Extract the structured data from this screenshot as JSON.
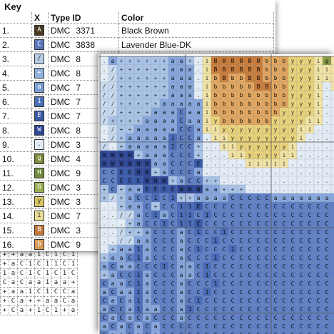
{
  "key": {
    "title": "Key",
    "headers": {
      "index": "",
      "symbol": "X",
      "type_id": "Type ID",
      "color": "Color"
    },
    "rows": [
      {
        "index": "1.",
        "symbol": "A",
        "type": "DMC",
        "id": "3371",
        "color_name": "Black Brown",
        "swatch": "#4b3a22"
      },
      {
        "index": "2.",
        "symbol": "C",
        "type": "DMC",
        "id": "3838",
        "color_name": "Lavender Blue-DK",
        "swatch": "#5a76b8"
      },
      {
        "index": "3.",
        "symbol": "/",
        "type": "DMC",
        "id": "8",
        "color_name": "",
        "swatch": "#b6cde6"
      },
      {
        "index": "4.",
        "symbol": "+",
        "type": "DMC",
        "id": "8",
        "color_name": "",
        "swatch": "#8fb1dc"
      },
      {
        "index": "5.",
        "symbol": "a",
        "type": "DMC",
        "id": "7",
        "color_name": "",
        "swatch": "#7a9dd6"
      },
      {
        "index": "6.",
        "symbol": "1",
        "type": "DMC",
        "id": "7",
        "color_name": "",
        "swatch": "#4a70b8"
      },
      {
        "index": "7.",
        "symbol": "E",
        "type": "DMC",
        "id": "7",
        "color_name": "",
        "swatch": "#3b5aa4"
      },
      {
        "index": "8.",
        "symbol": "W",
        "type": "DMC",
        "id": "8",
        "color_name": "",
        "swatch": "#2c4596"
      },
      {
        "index": "9.",
        "symbol": ".",
        "type": "DMC",
        "id": "3",
        "color_name": "",
        "swatch": "#e3ecf5"
      },
      {
        "index": "10.",
        "symbol": "g",
        "type": "DMC",
        "id": "4",
        "color_name": "",
        "swatch": "#7b8a3a"
      },
      {
        "index": "11.",
        "symbol": "H",
        "type": "DMC",
        "id": "9",
        "color_name": "",
        "swatch": "#6e8b3d"
      },
      {
        "index": "12.",
        "symbol": "G",
        "type": "DMC",
        "id": "3",
        "color_name": "",
        "swatch": "#9cb055"
      },
      {
        "index": "13.",
        "symbol": "y",
        "type": "DMC",
        "id": "3",
        "color_name": "",
        "swatch": "#d9c766"
      },
      {
        "index": "14.",
        "symbol": "i",
        "type": "DMC",
        "id": "7",
        "color_name": "",
        "swatch": "#e9dc96"
      },
      {
        "index": "15.",
        "symbol": "B",
        "type": "DMC",
        "id": "3",
        "color_name": "",
        "swatch": "#c4783a"
      },
      {
        "index": "16.",
        "symbol": "b",
        "type": "DMC",
        "id": "9",
        "color_name": "",
        "swatch": "#d99b55"
      }
    ]
  },
  "back_grid": {
    "rows": [
      "++aa1C1C1",
      "+aC1C11C1",
      "1aC1C1C1C",
      "CaCaa1aa+",
      "+aa1C1CCa",
      "+Ca++aaCa",
      "+Ca+1C1+a"
    ]
  },
  "front_grid": {
    "cols": 28,
    "rows": 33,
    "palette": {
      ".": "#e3ecf5",
      "/": "#c7d9ee",
      "+": "#a9c3e6",
      "a": "#86a6dc",
      "C": "#5f7fc4",
      "1": "#4b6cb8",
      "E": "#3a5aa8",
      "W": "#2d4694",
      "i": "#f1e3a4",
      "y": "#e8d27a",
      "b": "#e1a760",
      "B": "#c97c3a",
      "g": "#8b9b48",
      "G": "#a4b45d",
      "H": "#6e8b3d"
    },
    "cells": [
      ".a++++++aa+.iBBBBBBbbbyyyigi",
      "./++++++aaa.iBBBBBBbbbyyyiii",
      "./++++++aaa.ibBbbBBbbbyyyiii",
      "//++++++aaa.ibbbbbBBbbyyyi.i",
      "//++++++aaa.ibbbbbbbbbyyyi..",
      "//+++++aaaaaibbbbbbbbbyyyi..",
      "//++++aaaCaaibbbbbbbbyyyyi..",
      "/++++aaaaCaaiybbbbbbyyyyii..",
      "./++aaaaaCCaiiyyyyyyyyyii...",
      "./+aaaaa1CCa.iiyyyyyyyyi....",
      "/.+aaaaa1CC+..iiyyyyyyi.....",
      "WWWW+aaaCCC+...iiyyyyii.....",
      "WWWWWWaaCCCE.....iiiii......",
      "CCEEWW+aCCCa................",
      "CCEEEWWW+aCC++..............",
      "+C+aaEEEEWWWaa+++...........",
      "+/+aCC1C1++aaaaCCCCCaaaaaaaa",
      "..+aaC+CC11ECCCCCCCCCCCCCCCC",
      "..//aC1aC11C1CCCCCCCCCCCCCCC",
      "...+aCC1C11ECCCCCCCCCCCCCCCC",
      "../++aCCCaC1CC1CCCCCCCCCCCCC",
      "..//aaCCCaCCC1CCCCCCCCCCCCCC",
      ".+aa1aCCCaC1CCC1CCCCCCCCCCCC",
      "+aaC1aCCCaCCC1CCCCCCCCCCCCCC",
      "aCaaCCC1CaaC1CCCCCCCCCCCCCCC",
      "+aCC1aCCCaaC1CCCCCCCCCCCCCCC",
      "CaaC1aCCCaCCC1CCCCCCCCCCCCCC",
      "aCaa1aCCCaCC1CCCCCCCCCCCCCCC",
      "CaCa1aCCCaC1CCCCCCCCCCCCCCCC",
      "aCCa1aaCCa1CCCCCCCCCCCCCCCCC",
      "CaCaCaCCCaCCCCCCCCCCCCCCCCCC",
      "aCaCaCaCCCCCCCCCCCCCCCCCCCCC",
      "CaaCaCaCCCCCCCCCCCCCCCCCCCCC"
    ]
  }
}
